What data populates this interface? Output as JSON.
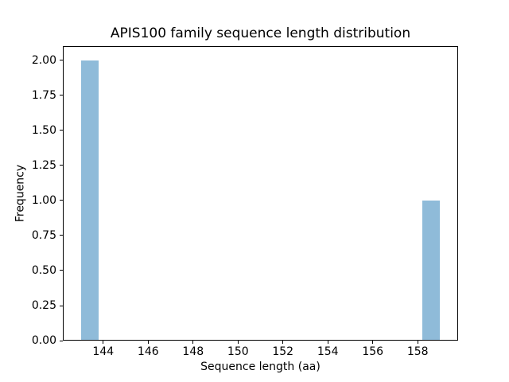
{
  "chart_data": {
    "type": "bar",
    "chart_kind": "histogram",
    "title": "APIS100 family sequence length distribution",
    "xlabel": "Sequence length (aa)",
    "ylabel": "Frequency",
    "bar_color": "#8fbbd9",
    "axis_color": "#000000",
    "text_color": "#000000",
    "background_color": "#ffffff",
    "grid": false,
    "legend": null,
    "xlim": [
      142.2,
      159.8
    ],
    "ylim": [
      0,
      2.1
    ],
    "x_ticks": [
      {
        "value": 144,
        "label": "144"
      },
      {
        "value": 146,
        "label": "146"
      },
      {
        "value": 148,
        "label": "148"
      },
      {
        "value": 150,
        "label": "150"
      },
      {
        "value": 152,
        "label": "152"
      },
      {
        "value": 154,
        "label": "154"
      },
      {
        "value": 156,
        "label": "156"
      },
      {
        "value": 158,
        "label": "158"
      }
    ],
    "y_ticks": [
      {
        "value": 0.0,
        "label": "0.00"
      },
      {
        "value": 0.25,
        "label": "0.25"
      },
      {
        "value": 0.5,
        "label": "0.50"
      },
      {
        "value": 0.75,
        "label": "0.75"
      },
      {
        "value": 1.0,
        "label": "1.00"
      },
      {
        "value": 1.25,
        "label": "1.25"
      },
      {
        "value": 1.5,
        "label": "1.50"
      },
      {
        "value": 1.75,
        "label": "1.75"
      },
      {
        "value": 2.0,
        "label": "2.00"
      }
    ],
    "bars": [
      {
        "bin_start": 143.0,
        "bin_end": 143.8,
        "frequency": 2
      },
      {
        "bin_start": 158.2,
        "bin_end": 159.0,
        "frequency": 1
      }
    ]
  }
}
